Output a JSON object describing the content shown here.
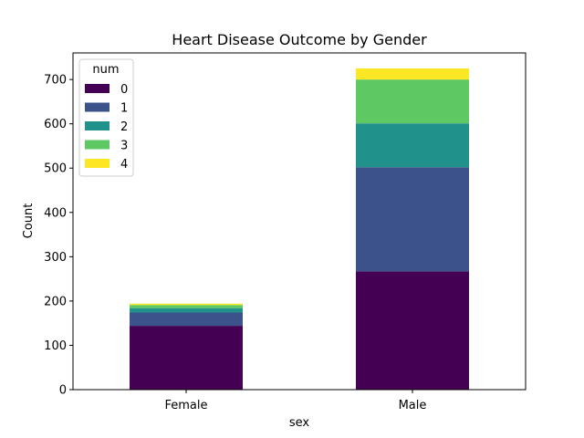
{
  "chart_data": {
    "type": "bar",
    "stacked": true,
    "title": "Heart Disease Outcome by Gender",
    "xlabel": "sex",
    "ylabel": "Count",
    "categories": [
      "Female",
      "Male"
    ],
    "ylim": [
      0,
      760
    ],
    "yticks": [
      0,
      100,
      200,
      300,
      400,
      500,
      600,
      700
    ],
    "grid": false,
    "legend": {
      "title": "num",
      "placement": "top-left"
    },
    "series": [
      {
        "name": "0",
        "color": "#440154",
        "values": [
          144,
          267
        ]
      },
      {
        "name": "1",
        "color": "#3b528b",
        "values": [
          30,
          235
        ]
      },
      {
        "name": "2",
        "color": "#21918c",
        "values": [
          10,
          99
        ]
      },
      {
        "name": "3",
        "color": "#5ec962",
        "values": [
          7,
          99
        ]
      },
      {
        "name": "4",
        "color": "#fde725",
        "values": [
          3,
          25
        ]
      }
    ]
  }
}
